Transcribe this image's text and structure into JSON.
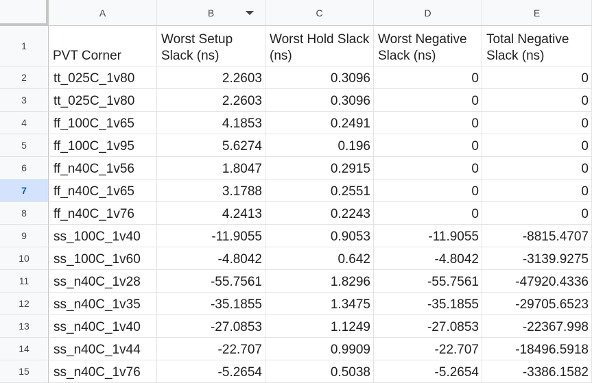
{
  "columns": [
    "A",
    "B",
    "C",
    "D",
    "E"
  ],
  "header_row": {
    "row_number": "1",
    "cells": [
      "PVT Corner",
      "Worst Setup Slack (ns)",
      "Worst Hold Slack (ns)",
      "Worst Negative Slack (ns)",
      "Total Negative Slack (ns)"
    ]
  },
  "selected_row": "7",
  "rows": [
    {
      "n": "2",
      "corner": "tt_025C_1v80",
      "setup": "2.2603",
      "hold": "0.3096",
      "wns": "0",
      "tns": "0"
    },
    {
      "n": "3",
      "corner": "tt_025C_1v80",
      "setup": "2.2603",
      "hold": "0.3096",
      "wns": "0",
      "tns": "0"
    },
    {
      "n": "4",
      "corner": "ff_100C_1v65",
      "setup": "4.1853",
      "hold": "0.2491",
      "wns": "0",
      "tns": "0"
    },
    {
      "n": "5",
      "corner": "ff_100C_1v95",
      "setup": "5.6274",
      "hold": "0.196",
      "wns": "0",
      "tns": "0"
    },
    {
      "n": "6",
      "corner": "ff_n40C_1v56",
      "setup": "1.8047",
      "hold": "0.2915",
      "wns": "0",
      "tns": "0"
    },
    {
      "n": "7",
      "corner": "ff_n40C_1v65",
      "setup": "3.1788",
      "hold": "0.2551",
      "wns": "0",
      "tns": "0"
    },
    {
      "n": "8",
      "corner": "ff_n40C_1v76",
      "setup": "4.2413",
      "hold": "0.2243",
      "wns": "0",
      "tns": "0"
    },
    {
      "n": "9",
      "corner": "ss_100C_1v40",
      "setup": "-11.9055",
      "hold": "0.9053",
      "wns": "-11.9055",
      "tns": "-8815.4707"
    },
    {
      "n": "10",
      "corner": "ss_100C_1v60",
      "setup": "-4.8042",
      "hold": "0.642",
      "wns": "-4.8042",
      "tns": "-3139.9275"
    },
    {
      "n": "11",
      "corner": "ss_n40C_1v28",
      "setup": "-55.7561",
      "hold": "1.8296",
      "wns": "-55.7561",
      "tns": "-47920.4336"
    },
    {
      "n": "12",
      "corner": "ss_n40C_1v35",
      "setup": "-35.1855",
      "hold": "1.3475",
      "wns": "-35.1855",
      "tns": "-29705.6523"
    },
    {
      "n": "13",
      "corner": "ss_n40C_1v40",
      "setup": "-27.0853",
      "hold": "1.1249",
      "wns": "-27.0853",
      "tns": "-22367.998"
    },
    {
      "n": "14",
      "corner": "ss_n40C_1v44",
      "setup": "-22.707",
      "hold": "0.9909",
      "wns": "-22.707",
      "tns": "-18496.5918"
    },
    {
      "n": "15",
      "corner": "ss_n40C_1v76",
      "setup": "-5.2654",
      "hold": "0.5038",
      "wns": "-5.2654",
      "tns": "-3386.1582"
    }
  ],
  "filter_column": "B",
  "icons": {
    "filter": "filter-dropdown-icon"
  },
  "colors": {
    "header_bg": "#f8f9fa",
    "selected_row_bg": "#d3e3fd",
    "selected_row_text": "#0b57d0",
    "gridline": "#e2e3e3"
  }
}
